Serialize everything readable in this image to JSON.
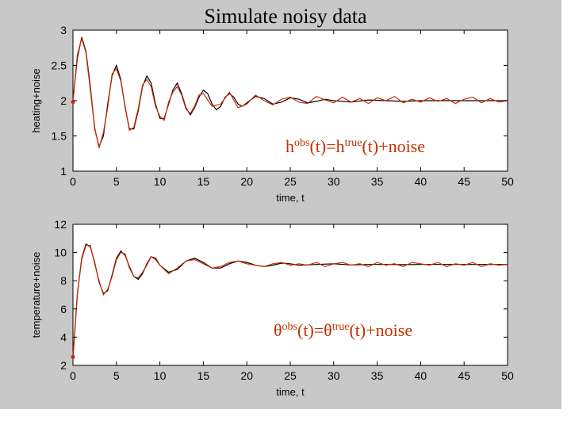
{
  "title": "Simulate noisy data",
  "chart_data": [
    {
      "type": "line",
      "xlabel": "time, t",
      "ylabel": "heating+noise",
      "xlim": [
        0,
        50
      ],
      "ylim": [
        1,
        3
      ],
      "xticks": [
        "0",
        "5",
        "10",
        "15",
        "20",
        "25",
        "30",
        "35",
        "40",
        "45",
        "50"
      ],
      "yticks": [
        "1",
        "1.5",
        "2",
        "2.5",
        "3"
      ],
      "annotation": {
        "base": "h",
        "sup1": "obs",
        "mid": "(t)=h",
        "sup2": "true",
        "tail": "(t)+noise"
      },
      "model": {
        "steady": 2.0,
        "start": 2.0,
        "amplitude": 0.95,
        "decay": 0.09,
        "period": 4.2,
        "true_phase": 0.0
      },
      "series": [
        {
          "color": "#000000",
          "x": [
            0,
            0.5,
            1,
            1.5,
            2,
            2.5,
            3,
            3.5,
            4,
            4.5,
            5,
            5.5,
            6,
            6.5,
            7,
            7.5,
            8,
            8.5,
            9,
            9.5,
            10,
            10.5,
            11,
            11.5,
            12,
            12.5,
            13,
            13.5,
            14,
            14.5,
            15,
            15.5,
            16,
            16.5,
            17,
            17.5,
            18,
            18.5,
            19,
            19.5,
            20,
            21,
            22,
            23,
            24,
            25,
            26,
            27,
            28,
            29,
            30,
            32,
            34,
            36,
            38,
            40,
            42,
            44,
            46,
            48,
            50
          ],
          "y": [
            2.0,
            2.6,
            2.9,
            2.7,
            2.2,
            1.6,
            1.35,
            1.5,
            1.95,
            2.35,
            2.5,
            2.3,
            1.9,
            1.6,
            1.6,
            1.85,
            2.2,
            2.35,
            2.25,
            1.95,
            1.75,
            1.75,
            1.95,
            2.15,
            2.25,
            2.1,
            1.9,
            1.8,
            1.9,
            2.05,
            2.15,
            2.1,
            1.95,
            1.87,
            1.92,
            2.05,
            2.1,
            2.05,
            1.95,
            1.92,
            1.97,
            2.06,
            2.03,
            1.95,
            1.98,
            2.04,
            2.02,
            1.97,
            1.99,
            2.02,
            2.0,
            1.98,
            2.01,
            2.0,
            1.99,
            2.0,
            2.0,
            2.0,
            2.0,
            2.0,
            2.0
          ]
        },
        {
          "color": "#d02a00",
          "x": [
            0,
            0.5,
            1,
            1.5,
            2,
            2.5,
            3,
            3.5,
            4,
            4.5,
            5,
            5.5,
            6,
            6.5,
            7,
            7.5,
            8,
            8.5,
            9,
            9.5,
            10,
            10.5,
            11,
            11.5,
            12,
            12.5,
            13,
            13.5,
            14,
            14.5,
            15,
            16,
            17,
            18,
            19,
            20,
            21,
            22,
            23,
            24,
            25,
            26,
            27,
            28,
            29,
            30,
            31,
            32,
            33,
            34,
            35,
            36,
            37,
            38,
            39,
            40,
            41,
            42,
            43,
            44,
            45,
            46,
            47,
            48,
            49,
            50
          ],
          "y": [
            1.98,
            2.65,
            2.88,
            2.68,
            2.15,
            1.62,
            1.33,
            1.55,
            1.9,
            2.38,
            2.45,
            2.28,
            1.92,
            1.58,
            1.62,
            1.88,
            2.22,
            2.3,
            2.2,
            1.92,
            1.78,
            1.72,
            1.98,
            2.12,
            2.2,
            2.08,
            1.88,
            1.82,
            1.92,
            2.08,
            2.1,
            1.92,
            1.95,
            2.12,
            1.9,
            1.95,
            2.08,
            2.0,
            1.94,
            2.02,
            2.05,
            1.98,
            1.96,
            2.06,
            2.01,
            1.97,
            2.05,
            1.98,
            2.03,
            1.96,
            2.04,
            2.0,
            2.06,
            1.97,
            2.02,
            1.98,
            2.04,
            1.99,
            2.03,
            1.96,
            2.02,
            2.05,
            1.97,
            2.03,
            1.98,
            2.0
          ]
        }
      ]
    },
    {
      "type": "line",
      "xlabel": "time, t",
      "ylabel": "temperature+noise",
      "xlim": [
        0,
        50
      ],
      "ylim": [
        2,
        12
      ],
      "xticks": [
        "0",
        "5",
        "10",
        "15",
        "20",
        "25",
        "30",
        "35",
        "40",
        "45",
        "50"
      ],
      "yticks": [
        "2",
        "4",
        "6",
        "8",
        "10",
        "12"
      ],
      "annotation": {
        "base": "θ",
        "sup1": "obs",
        "mid": "(t)=θ",
        "sup2": "true",
        "tail": "(t)+noise"
      },
      "series": [
        {
          "color": "#000000",
          "x": [
            0,
            0.5,
            1,
            1.5,
            2,
            2.5,
            3,
            3.5,
            4,
            4.5,
            5,
            5.5,
            6,
            6.5,
            7,
            7.5,
            8,
            8.5,
            9,
            9.5,
            10,
            11,
            12,
            13,
            14,
            15,
            16,
            17,
            18,
            19,
            20,
            21,
            22,
            23,
            24,
            25,
            26,
            28,
            30,
            32,
            34,
            36,
            38,
            40,
            42,
            44,
            46,
            48,
            50
          ],
          "y": [
            2.5,
            7.0,
            9.6,
            10.6,
            10.4,
            9.3,
            7.9,
            7.1,
            7.3,
            8.4,
            9.6,
            10.1,
            9.8,
            9.0,
            8.3,
            8.1,
            8.5,
            9.2,
            9.7,
            9.6,
            9.1,
            8.6,
            8.8,
            9.4,
            9.6,
            9.3,
            8.9,
            8.9,
            9.2,
            9.4,
            9.3,
            9.1,
            9.0,
            9.1,
            9.25,
            9.2,
            9.1,
            9.15,
            9.2,
            9.12,
            9.15,
            9.15,
            9.14,
            9.15,
            9.15,
            9.15,
            9.15,
            9.15,
            9.15
          ]
        },
        {
          "color": "#d02a00",
          "x": [
            0,
            0.5,
            1,
            1.5,
            2,
            2.5,
            3,
            3.5,
            4,
            4.5,
            5,
            5.5,
            6,
            6.5,
            7,
            7.5,
            8,
            8.5,
            9,
            9.5,
            10,
            11,
            12,
            13,
            14,
            15,
            16,
            17,
            18,
            19,
            20,
            21,
            22,
            23,
            24,
            25,
            26,
            27,
            28,
            29,
            30,
            31,
            32,
            33,
            34,
            35,
            36,
            37,
            38,
            39,
            40,
            41,
            42,
            43,
            44,
            45,
            46,
            47,
            48,
            49,
            50
          ],
          "y": [
            2.6,
            7.1,
            9.5,
            10.5,
            10.5,
            9.2,
            8.0,
            7.0,
            7.4,
            8.3,
            9.5,
            10.0,
            9.9,
            8.9,
            8.3,
            8.2,
            8.6,
            9.1,
            9.7,
            9.5,
            9.1,
            8.5,
            8.9,
            9.4,
            9.5,
            9.2,
            8.9,
            9.0,
            9.3,
            9.4,
            9.2,
            9.1,
            9.0,
            9.2,
            9.3,
            9.1,
            9.2,
            9.1,
            9.3,
            9.0,
            9.2,
            9.3,
            9.1,
            9.2,
            9.0,
            9.3,
            9.1,
            9.2,
            9.0,
            9.3,
            9.2,
            9.1,
            9.3,
            9.0,
            9.2,
            9.1,
            9.3,
            9.0,
            9.2,
            9.1,
            9.15
          ]
        }
      ]
    }
  ]
}
